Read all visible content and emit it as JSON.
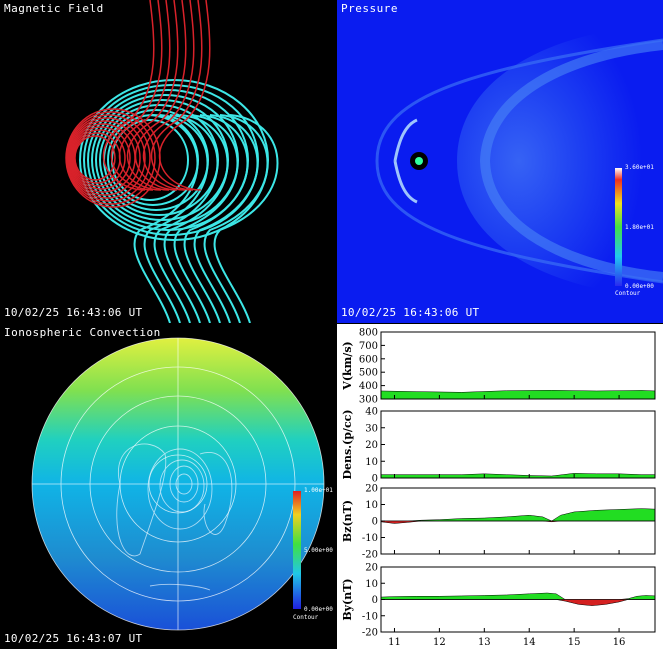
{
  "panels": {
    "magnetic": {
      "title": "Magnetic Field",
      "time": "10/02/25 16:43:06 UT"
    },
    "pressure": {
      "title": "Pressure",
      "time": "10/02/25 16:43:06 UT",
      "colorbar": {
        "max": "3.60e+01",
        "mid": "1.80e+01",
        "min": "0.00e+00",
        "label": "Contour"
      }
    },
    "iono": {
      "title": "Ionospheric Convection",
      "time": "10/02/25 16:43:07 UT",
      "colorbar": {
        "max": "1.00e+01",
        "mid": "5.00e+00",
        "min": "0.00e+00",
        "label": "Contour"
      }
    }
  },
  "colors": {
    "field_red": "#d8222a",
    "field_cyan": "#3de6e6",
    "fill_green": "#22dd22",
    "fill_red": "#d42020"
  },
  "chart_data": [
    {
      "type": "area",
      "ylabel": "V(km/s)",
      "ylim": [
        300,
        800
      ],
      "yticks": [
        300,
        400,
        500,
        600,
        700,
        800
      ],
      "x": [
        10.7,
        11.5,
        12.5,
        13.5,
        14.5,
        15.5,
        16.5,
        16.8
      ],
      "values": [
        360,
        355,
        350,
        362,
        365,
        360,
        364,
        360
      ]
    },
    {
      "type": "area",
      "ylabel": "Dens.(p/cc)",
      "ylim": [
        0,
        40
      ],
      "yticks": [
        0,
        10,
        20,
        30,
        40
      ],
      "x": [
        10.7,
        11.5,
        12.5,
        13.0,
        13.5,
        14.0,
        14.5,
        15.0,
        15.5,
        16.0,
        16.5,
        16.8
      ],
      "values": [
        2,
        2,
        2,
        2.5,
        2,
        1.5,
        1.2,
        2.8,
        2.5,
        2.5,
        2,
        2
      ]
    },
    {
      "type": "area",
      "ylabel": "Bz(nT)",
      "ylim": [
        -20,
        20
      ],
      "yticks": [
        -20,
        -10,
        0,
        10,
        20
      ],
      "x": [
        10.7,
        11.0,
        11.3,
        11.6,
        12.0,
        12.5,
        13.0,
        13.5,
        14.0,
        14.3,
        14.5,
        14.7,
        15.0,
        15.5,
        16.0,
        16.5,
        16.8
      ],
      "values": [
        -0.5,
        -1.5,
        -0.8,
        0.5,
        0.8,
        1.5,
        1.8,
        2.5,
        3.5,
        2.5,
        -0.5,
        3.5,
        5.5,
        6.5,
        7,
        7.5,
        7.2
      ]
    },
    {
      "type": "area",
      "ylabel": "By(nT)",
      "ylim": [
        -20,
        20
      ],
      "yticks": [
        -20,
        -10,
        0,
        10,
        20
      ],
      "x": [
        10.7,
        11.0,
        11.5,
        12.0,
        12.5,
        13.0,
        13.5,
        14.0,
        14.4,
        14.6,
        14.8,
        15.1,
        15.4,
        15.7,
        16.0,
        16.2,
        16.4,
        16.6,
        16.8
      ],
      "values": [
        1.5,
        1.8,
        2,
        2,
        2.2,
        2.5,
        2.8,
        3.5,
        4,
        3.5,
        -1,
        -3,
        -3.8,
        -3,
        -1.5,
        0.5,
        2,
        2.5,
        2.2
      ],
      "xticks": [
        11,
        12,
        13,
        14,
        15,
        16
      ],
      "xlim": [
        10.7,
        16.8
      ]
    }
  ]
}
